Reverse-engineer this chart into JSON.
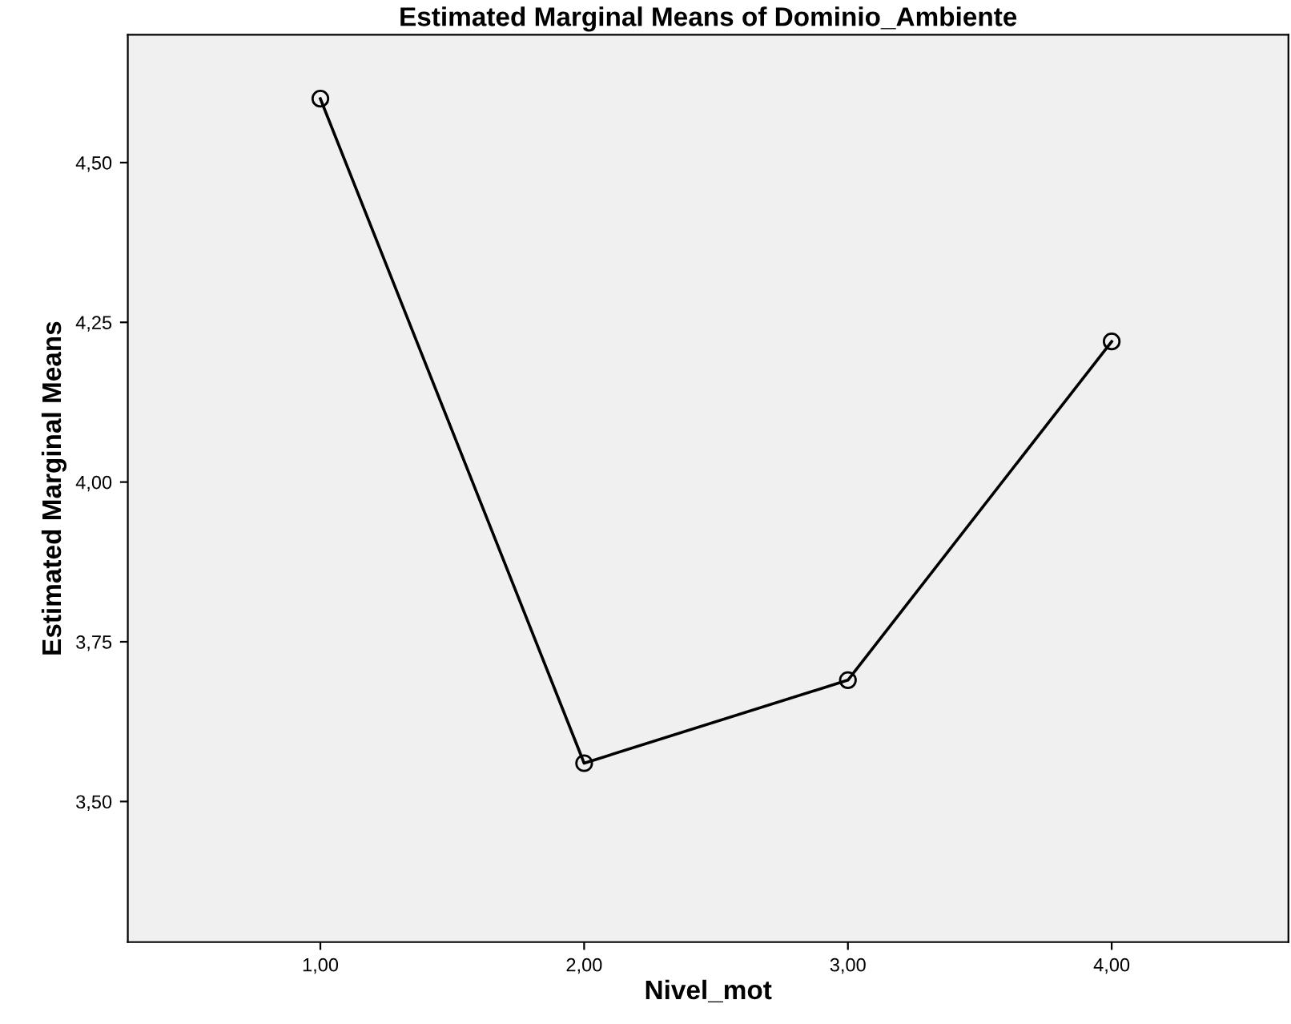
{
  "chart_data": {
    "type": "line",
    "title": "Estimated Marginal Means of Dominio_Ambiente",
    "xlabel": "Nivel_mot",
    "ylabel": "Estimated Marginal Means",
    "categories": [
      "1,00",
      "2,00",
      "3,00",
      "4,00"
    ],
    "series": [
      {
        "color": "#000000",
        "values": [
          4.6,
          3.56,
          3.69,
          4.22
        ]
      }
    ],
    "ylim": [
      3.28,
      4.7
    ],
    "yticks": [
      {
        "value": 3.5,
        "label": "3,50"
      },
      {
        "value": 3.75,
        "label": "3,75"
      },
      {
        "value": 4.0,
        "label": "4,00"
      },
      {
        "value": 4.25,
        "label": "4,25"
      },
      {
        "value": 4.5,
        "label": "4,50"
      }
    ],
    "marker": "circle",
    "line_style": "solid",
    "grid": false
  }
}
